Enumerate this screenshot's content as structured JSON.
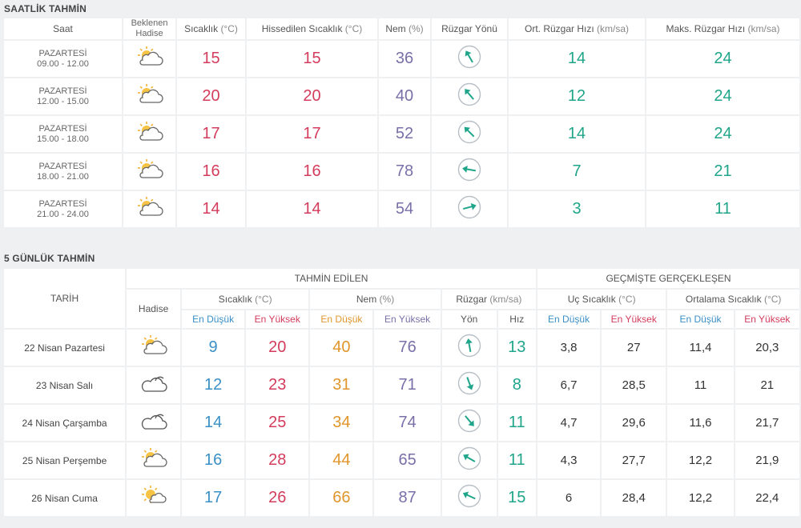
{
  "hourly": {
    "title": "SAATLİK TAHMİN",
    "headers": {
      "time": "Saat",
      "event": "Beklenen Hadise",
      "temp": "Sıcaklık",
      "temp_unit": "(°C)",
      "feels": "Hissedilen Sıcaklık",
      "feels_unit": "(°C)",
      "humidity": "Nem",
      "humidity_unit": "(%)",
      "wind_dir": "Rüzgar Yönü",
      "avg_wind": "Ort. Rüzgar Hızı",
      "avg_wind_unit": "(km/sa)",
      "max_wind": "Maks. Rüzgar Hızı",
      "max_wind_unit": "(km/sa)"
    },
    "rows": [
      {
        "day": "PAZARTESİ",
        "range": "09.00 - 12.00",
        "icon": "partly-cloudy-icon",
        "temp": "15",
        "feels": "15",
        "humidity": "36",
        "wind_deg": 150,
        "avg": "14",
        "max": "24"
      },
      {
        "day": "PAZARTESİ",
        "range": "12.00 - 15.00",
        "icon": "partly-cloudy-icon",
        "temp": "20",
        "feels": "20",
        "humidity": "40",
        "wind_deg": 140,
        "avg": "12",
        "max": "24"
      },
      {
        "day": "PAZARTESİ",
        "range": "15.00 - 18.00",
        "icon": "partly-cloudy-icon",
        "temp": "17",
        "feels": "17",
        "humidity": "52",
        "wind_deg": 135,
        "avg": "14",
        "max": "24"
      },
      {
        "day": "PAZARTESİ",
        "range": "18.00 - 21.00",
        "icon": "partly-cloudy-icon",
        "temp": "16",
        "feels": "16",
        "humidity": "78",
        "wind_deg": 100,
        "avg": "7",
        "max": "21"
      },
      {
        "day": "PAZARTESİ",
        "range": "21.00 - 24.00",
        "icon": "partly-cloudy-icon",
        "temp": "14",
        "feels": "14",
        "humidity": "54",
        "wind_deg": 255,
        "avg": "3",
        "max": "11"
      }
    ]
  },
  "daily": {
    "title": "5 GÜNLÜK TAHMİN",
    "headers": {
      "date": "TARİH",
      "forecast": "TAHMİN EDİLEN",
      "past": "GEÇMİŞTE GERÇEKLEŞEN",
      "event": "Hadise",
      "temp": "Sıcaklık",
      "temp_unit": "(°C)",
      "humidity": "Nem",
      "humidity_unit": "(%)",
      "wind": "Rüzgar",
      "wind_unit": "(km/sa)",
      "extreme": "Uç Sıcaklık",
      "extreme_unit": "(°C)",
      "avg_temp": "Ortalama Sıcaklık",
      "avg_temp_unit": "(°C)",
      "min": "En Düşük",
      "max": "En Yüksek",
      "dir": "Yön",
      "speed": "Hız"
    },
    "rows": [
      {
        "date": "22 Nisan Pazartesi",
        "icon": "partly-cloudy-icon",
        "tmin": "9",
        "tmax": "20",
        "hmin": "40",
        "hmax": "76",
        "wind_deg": 170,
        "speed": "13",
        "xmin": "3,8",
        "xmax": "27",
        "amin": "11,4",
        "amax": "20,3"
      },
      {
        "date": "23 Nisan Salı",
        "icon": "cloudy-icon",
        "tmin": "12",
        "tmax": "23",
        "hmin": "31",
        "hmax": "71",
        "wind_deg": 340,
        "speed": "8",
        "xmin": "6,7",
        "xmax": "28,5",
        "amin": "11",
        "amax": "21"
      },
      {
        "date": "24 Nisan Çarşamba",
        "icon": "cloudy-icon",
        "tmin": "14",
        "tmax": "25",
        "hmin": "34",
        "hmax": "74",
        "wind_deg": 320,
        "speed": "11",
        "xmin": "4,7",
        "xmax": "29,6",
        "amin": "11,6",
        "amax": "21,7"
      },
      {
        "date": "25 Nisan Perşembe",
        "icon": "partly-cloudy-icon",
        "tmin": "16",
        "tmax": "28",
        "hmin": "44",
        "hmax": "65",
        "wind_deg": 120,
        "speed": "11",
        "xmin": "4,3",
        "xmax": "27,7",
        "amin": "12,2",
        "amax": "21,9"
      },
      {
        "date": "26 Nisan Cuma",
        "icon": "sunny-cloud-icon",
        "tmin": "17",
        "tmax": "26",
        "hmin": "66",
        "hmax": "87",
        "wind_deg": 115,
        "speed": "15",
        "xmin": "6",
        "xmax": "28,4",
        "amin": "12,2",
        "amax": "22,4"
      }
    ]
  }
}
